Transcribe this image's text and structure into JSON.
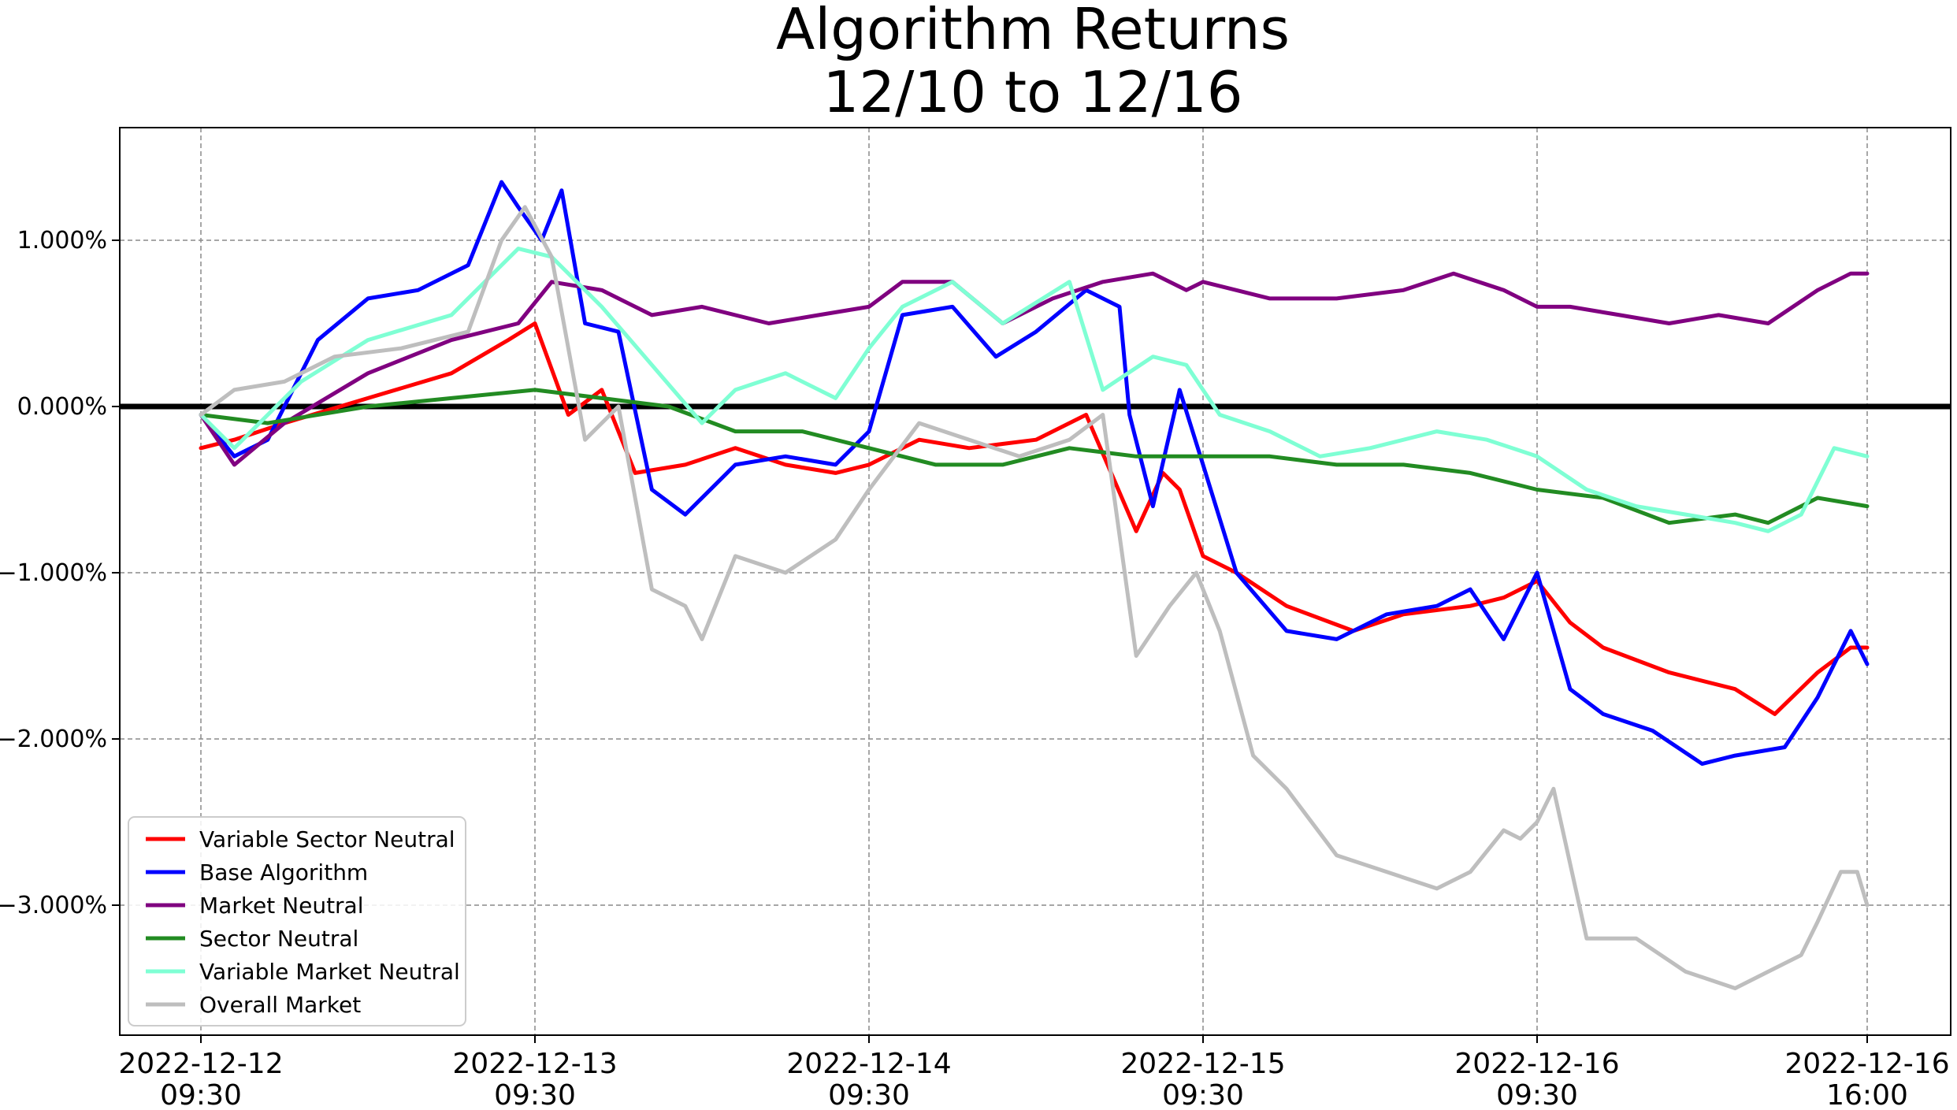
{
  "chart_data": {
    "type": "line",
    "title": "Algorithm Returns",
    "subtitle": "12/10 to 12/16",
    "xlabel": "",
    "ylabel": "",
    "x_unit": "trading days",
    "xlim": [
      0,
      5
    ],
    "ylim": [
      -3.8,
      1.65
    ],
    "y_ticks": [
      1.0,
      0.0,
      -1.0,
      -2.0,
      -3.0
    ],
    "y_tick_labels": [
      "1.000%",
      "0.000%",
      "−1.000%",
      "−2.000%",
      "−3.000%"
    ],
    "x_ticks": [
      0,
      1,
      2,
      3,
      4,
      5
    ],
    "x_tick_labels": [
      [
        "2022-12-12",
        "09:30"
      ],
      [
        "2022-12-13",
        "09:30"
      ],
      [
        "2022-12-14",
        "09:30"
      ],
      [
        "2022-12-15",
        "09:30"
      ],
      [
        "2022-12-16",
        "09:30"
      ],
      [
        "2022-12-16",
        "16:00"
      ]
    ],
    "grid": true,
    "zero_line": true,
    "legend_position": "lower-left",
    "series": [
      {
        "name": "Variable Sector Neutral",
        "color": "#ff0000",
        "x": [
          0,
          0.1,
          0.25,
          0.5,
          0.75,
          0.92,
          1.0,
          1.1,
          1.2,
          1.3,
          1.45,
          1.6,
          1.75,
          1.9,
          2.0,
          2.15,
          2.3,
          2.5,
          2.65,
          2.8,
          2.88,
          2.93,
          3.0,
          3.1,
          3.25,
          3.45,
          3.6,
          3.8,
          3.9,
          4.0,
          4.1,
          4.2,
          4.4,
          4.6,
          4.72,
          4.85,
          4.95,
          5.0
        ],
        "y": [
          -0.25,
          -0.2,
          -0.1,
          0.05,
          0.2,
          0.4,
          0.5,
          -0.05,
          0.1,
          -0.4,
          -0.35,
          -0.25,
          -0.35,
          -0.4,
          -0.35,
          -0.2,
          -0.25,
          -0.2,
          -0.05,
          -0.75,
          -0.4,
          -0.5,
          -0.9,
          -1.0,
          -1.2,
          -1.35,
          -1.25,
          -1.2,
          -1.15,
          -1.05,
          -1.3,
          -1.45,
          -1.6,
          -1.7,
          -1.85,
          -1.6,
          -1.45,
          -1.45
        ]
      },
      {
        "name": "Base Algorithm",
        "color": "#0000ff",
        "x": [
          0,
          0.1,
          0.2,
          0.35,
          0.5,
          0.65,
          0.8,
          0.9,
          0.95,
          1.02,
          1.08,
          1.15,
          1.25,
          1.35,
          1.45,
          1.6,
          1.75,
          1.9,
          2.0,
          2.1,
          2.25,
          2.38,
          2.5,
          2.65,
          2.75,
          2.78,
          2.85,
          2.93,
          3.0,
          3.1,
          3.25,
          3.4,
          3.55,
          3.7,
          3.8,
          3.9,
          4.0,
          4.1,
          4.2,
          4.35,
          4.5,
          4.6,
          4.75,
          4.85,
          4.95,
          5.0
        ],
        "y": [
          -0.05,
          -0.3,
          -0.2,
          0.4,
          0.65,
          0.7,
          0.85,
          1.35,
          1.2,
          1.0,
          1.3,
          0.5,
          0.45,
          -0.5,
          -0.65,
          -0.35,
          -0.3,
          -0.35,
          -0.15,
          0.55,
          0.6,
          0.3,
          0.45,
          0.7,
          0.6,
          -0.05,
          -0.6,
          0.1,
          -0.35,
          -1.0,
          -1.35,
          -1.4,
          -1.25,
          -1.2,
          -1.1,
          -1.4,
          -1.0,
          -1.7,
          -1.85,
          -1.95,
          -2.15,
          -2.1,
          -2.05,
          -1.75,
          -1.35,
          -1.55
        ]
      },
      {
        "name": "Market Neutral",
        "color": "#800080",
        "x": [
          0,
          0.1,
          0.25,
          0.5,
          0.75,
          0.95,
          1.05,
          1.2,
          1.35,
          1.5,
          1.7,
          1.85,
          2.0,
          2.1,
          2.25,
          2.4,
          2.55,
          2.7,
          2.85,
          2.95,
          3.0,
          3.2,
          3.4,
          3.6,
          3.75,
          3.9,
          4.0,
          4.1,
          4.25,
          4.4,
          4.55,
          4.7,
          4.85,
          4.95,
          5.0
        ],
        "y": [
          -0.05,
          -0.35,
          -0.1,
          0.2,
          0.4,
          0.5,
          0.75,
          0.7,
          0.55,
          0.6,
          0.5,
          0.55,
          0.6,
          0.75,
          0.75,
          0.5,
          0.65,
          0.75,
          0.8,
          0.7,
          0.75,
          0.65,
          0.65,
          0.7,
          0.8,
          0.7,
          0.6,
          0.6,
          0.55,
          0.5,
          0.55,
          0.5,
          0.7,
          0.8,
          0.8
        ]
      },
      {
        "name": "Sector Neutral",
        "color": "#228b22",
        "x": [
          0,
          0.2,
          0.5,
          0.75,
          1.0,
          1.2,
          1.4,
          1.6,
          1.8,
          2.0,
          2.2,
          2.4,
          2.6,
          2.8,
          3.0,
          3.2,
          3.4,
          3.6,
          3.8,
          4.0,
          4.2,
          4.4,
          4.6,
          4.7,
          4.85,
          5.0
        ],
        "y": [
          -0.05,
          -0.1,
          0.0,
          0.05,
          0.1,
          0.05,
          0.0,
          -0.15,
          -0.15,
          -0.25,
          -0.35,
          -0.35,
          -0.25,
          -0.3,
          -0.3,
          -0.3,
          -0.35,
          -0.35,
          -0.4,
          -0.5,
          -0.55,
          -0.7,
          -0.65,
          -0.7,
          -0.55,
          -0.6
        ]
      },
      {
        "name": "Variable Market Neutral",
        "color": "#7fffd4",
        "x": [
          0,
          0.1,
          0.3,
          0.5,
          0.75,
          0.95,
          1.05,
          1.2,
          1.35,
          1.5,
          1.6,
          1.75,
          1.9,
          2.0,
          2.1,
          2.25,
          2.4,
          2.6,
          2.7,
          2.85,
          2.95,
          3.05,
          3.2,
          3.35,
          3.5,
          3.7,
          3.85,
          4.0,
          4.15,
          4.3,
          4.45,
          4.6,
          4.7,
          4.8,
          4.9,
          5.0
        ],
        "y": [
          -0.05,
          -0.25,
          0.15,
          0.4,
          0.55,
          0.95,
          0.9,
          0.6,
          0.25,
          -0.1,
          0.1,
          0.2,
          0.05,
          0.35,
          0.6,
          0.75,
          0.5,
          0.75,
          0.1,
          0.3,
          0.25,
          -0.05,
          -0.15,
          -0.3,
          -0.25,
          -0.15,
          -0.2,
          -0.3,
          -0.5,
          -0.6,
          -0.65,
          -0.7,
          -0.75,
          -0.65,
          -0.25,
          -0.3
        ]
      },
      {
        "name": "Overall Market",
        "color": "#bebebe",
        "x": [
          0,
          0.1,
          0.25,
          0.4,
          0.6,
          0.8,
          0.9,
          0.97,
          1.05,
          1.15,
          1.25,
          1.35,
          1.45,
          1.5,
          1.6,
          1.75,
          1.9,
          2.0,
          2.15,
          2.3,
          2.45,
          2.6,
          2.7,
          2.8,
          2.9,
          2.98,
          3.05,
          3.15,
          3.25,
          3.4,
          3.55,
          3.7,
          3.8,
          3.9,
          3.95,
          4.0,
          4.05,
          4.15,
          4.3,
          4.45,
          4.6,
          4.7,
          4.8,
          4.85,
          4.92,
          4.97,
          5.0
        ],
        "y": [
          -0.05,
          0.1,
          0.15,
          0.3,
          0.35,
          0.45,
          1.0,
          1.2,
          0.9,
          -0.2,
          0.0,
          -1.1,
          -1.2,
          -1.4,
          -0.9,
          -1.0,
          -0.8,
          -0.5,
          -0.1,
          -0.2,
          -0.3,
          -0.2,
          -0.05,
          -1.5,
          -1.2,
          -1.0,
          -1.35,
          -2.1,
          -2.3,
          -2.7,
          -2.8,
          -2.9,
          -2.8,
          -2.55,
          -2.6,
          -2.5,
          -2.3,
          -3.2,
          -3.2,
          -3.4,
          -3.5,
          -3.4,
          -3.3,
          -3.1,
          -2.8,
          -2.8,
          -3.0
        ]
      }
    ]
  }
}
